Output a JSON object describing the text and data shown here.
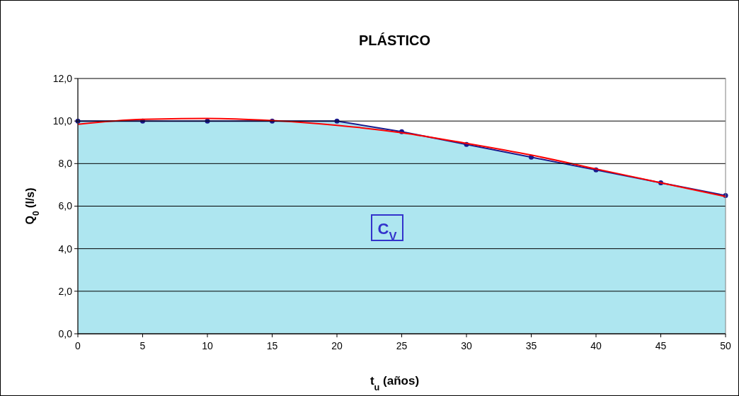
{
  "chart_data": {
    "type": "area",
    "title": "PLÁSTICO",
    "xlabel": "t$_{u}$ (años)",
    "ylabel": "Q$_{0}$ (l/s)",
    "x": [
      0,
      5,
      10,
      15,
      20,
      25,
      30,
      35,
      40,
      45,
      50
    ],
    "series": [
      {
        "marker": "circle",
        "color": "#1a1a8c",
        "values": [
          10.0,
          10.0,
          10.0,
          10.0,
          10.0,
          9.5,
          8.9,
          8.3,
          7.7,
          7.1,
          6.5
        ]
      },
      {
        "type": "line",
        "marker": "none",
        "color": "#ff0000",
        "values": [
          9.85,
          10.08,
          10.12,
          10.02,
          9.8,
          9.45,
          8.95,
          8.4,
          7.75,
          7.1,
          6.45
        ]
      }
    ],
    "xlim": [
      0,
      50
    ],
    "xticks": [
      0,
      5,
      10,
      15,
      20,
      25,
      30,
      35,
      40,
      45,
      50
    ],
    "ylim": [
      0,
      12
    ],
    "yticks": [
      {
        "value": 0,
        "label": "0,0"
      },
      {
        "value": 2,
        "label": "2,0"
      },
      {
        "value": 4,
        "label": "4,0"
      },
      {
        "value": 6,
        "label": "6,0"
      },
      {
        "value": 8,
        "label": "8,0"
      },
      {
        "value": 10,
        "label": "10,0"
      },
      {
        "value": 12,
        "label": "12,0"
      }
    ],
    "grid": "y",
    "annotations": [
      "C$_{V}$"
    ]
  }
}
